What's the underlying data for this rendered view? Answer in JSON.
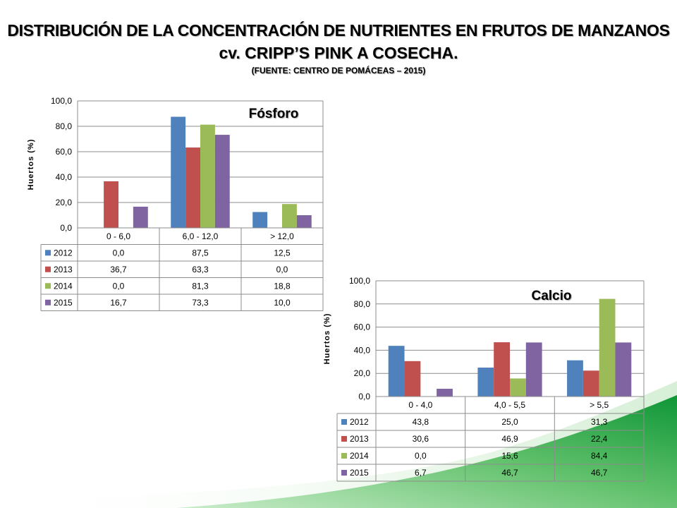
{
  "slide": {
    "title_line1": "DISTRIBUCIÓN DE LA CONCENTRACIÓN DE NUTRIENTES EN FRUTOS DE MANZANOS",
    "title_line2": "cv. CRIPP’S PINK A COSECHA.",
    "source": "(FUENTE: CENTRO DE POMÁCEAS – 2015)"
  },
  "colors": {
    "2012": "#4f81bd",
    "2013": "#c0504d",
    "2014": "#9bbb59",
    "2015": "#8064a2",
    "background_green": "#1a9b3a"
  },
  "chart_data": [
    {
      "type": "bar",
      "title": "Fósforo",
      "ylabel": "Huertos (%)",
      "ylim": [
        0,
        100
      ],
      "yticks": [
        "0,0",
        "20,0",
        "40,0",
        "60,0",
        "80,0",
        "100,0"
      ],
      "grid": true,
      "categories": [
        "0 - 6,0",
        "6,0 - 12,0",
        "> 12,0"
      ],
      "series": [
        {
          "name": "2012",
          "values": [
            0.0,
            87.5,
            12.5
          ],
          "labels": [
            "0,0",
            "87,5",
            "12,5"
          ]
        },
        {
          "name": "2013",
          "values": [
            36.7,
            63.3,
            0.0
          ],
          "labels": [
            "36,7",
            "63,3",
            "0,0"
          ]
        },
        {
          "name": "2014",
          "values": [
            0.0,
            81.3,
            18.8
          ],
          "labels": [
            "0,0",
            "81,3",
            "18,8"
          ]
        },
        {
          "name": "2015",
          "values": [
            16.7,
            73.3,
            10.0
          ],
          "labels": [
            "16,7",
            "73,3",
            "10,0"
          ]
        }
      ]
    },
    {
      "type": "bar",
      "title": "Calcio",
      "ylabel": "Huertos (%)",
      "ylim": [
        0,
        100
      ],
      "yticks": [
        "0,0",
        "20,0",
        "40,0",
        "60,0",
        "80,0",
        "100,0"
      ],
      "grid": true,
      "categories": [
        "0 - 4,0",
        "4,0 - 5,5",
        "> 5,5"
      ],
      "series": [
        {
          "name": "2012",
          "values": [
            43.8,
            25.0,
            31.3
          ],
          "labels": [
            "43,8",
            "25,0",
            "31,3"
          ]
        },
        {
          "name": "2013",
          "values": [
            30.6,
            46.9,
            22.4
          ],
          "labels": [
            "30,6",
            "46,9",
            "22,4"
          ]
        },
        {
          "name": "2014",
          "values": [
            0.0,
            15.6,
            84.4
          ],
          "labels": [
            "0,0",
            "15,6",
            "84,4"
          ]
        },
        {
          "name": "2015",
          "values": [
            6.7,
            46.7,
            46.7
          ],
          "labels": [
            "6,7",
            "46,7",
            "46,7"
          ]
        }
      ]
    }
  ]
}
